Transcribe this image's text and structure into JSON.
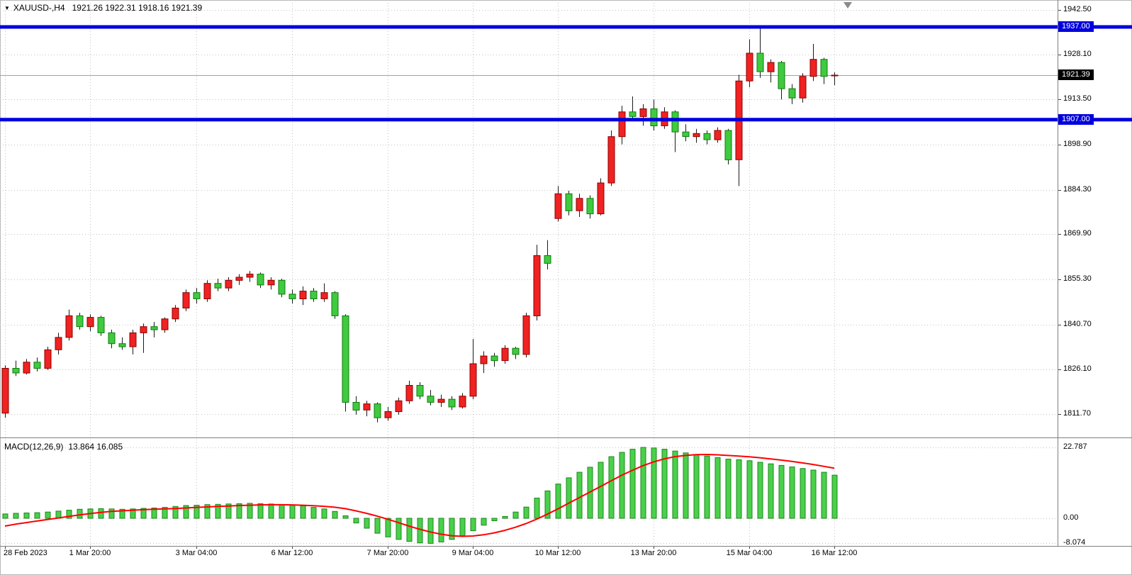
{
  "header": {
    "symbol_period": "XAUUSD-,H4",
    "ohlc_values": "1921.26 1922.31 1918.16 1921.39"
  },
  "chart_data": {
    "type": "candlestick",
    "symbol": "XAUUSD-",
    "timeframe": "H4",
    "price_axis": {
      "ticks": [
        {
          "label": "1942.50",
          "price": 1942.5
        },
        {
          "label": "1928.10",
          "price": 1928.1
        },
        {
          "label": "1913.50",
          "price": 1913.5
        },
        {
          "label": "1898.90",
          "price": 1898.9
        },
        {
          "label": "1884.30",
          "price": 1884.3
        },
        {
          "label": "1869.90",
          "price": 1869.9
        },
        {
          "label": "1855.30",
          "price": 1855.3
        },
        {
          "label": "1840.70",
          "price": 1840.7
        },
        {
          "label": "1826.10",
          "price": 1826.1
        },
        {
          "label": "1811.70",
          "price": 1811.7
        }
      ]
    },
    "time_axis": {
      "ticks": [
        {
          "label": "28 Feb 2023",
          "i": 0
        },
        {
          "label": "1 Mar 20:00",
          "i": 8
        },
        {
          "label": "3 Mar 04:00",
          "i": 18
        },
        {
          "label": "6 Mar 12:00",
          "i": 27
        },
        {
          "label": "7 Mar 20:00",
          "i": 36
        },
        {
          "label": "9 Mar 04:00",
          "i": 44
        },
        {
          "label": "10 Mar 12:00",
          "i": 52
        },
        {
          "label": "13 Mar 20:00",
          "i": 61
        },
        {
          "label": "15 Mar 04:00",
          "i": 70
        },
        {
          "label": "16 Mar 12:00",
          "i": 78
        }
      ]
    },
    "candles": [
      [
        1812.0,
        1827.5,
        1810.5,
        1826.5
      ],
      [
        1826.5,
        1829.0,
        1824.0,
        1825.0
      ],
      [
        1825.0,
        1829.5,
        1824.5,
        1828.5
      ],
      [
        1828.5,
        1830.0,
        1825.5,
        1826.5
      ],
      [
        1826.5,
        1833.5,
        1826.0,
        1832.5
      ],
      [
        1832.5,
        1838.0,
        1831.0,
        1836.5
      ],
      [
        1836.5,
        1845.5,
        1835.5,
        1843.5
      ],
      [
        1843.5,
        1844.5,
        1839.0,
        1840.0
      ],
      [
        1840.0,
        1844.0,
        1838.5,
        1843.0
      ],
      [
        1843.0,
        1843.5,
        1837.0,
        1838.0
      ],
      [
        1838.0,
        1839.0,
        1833.0,
        1834.5
      ],
      [
        1834.5,
        1836.5,
        1832.5,
        1833.5
      ],
      [
        1833.5,
        1839.0,
        1831.0,
        1838.0
      ],
      [
        1838.0,
        1841.0,
        1831.5,
        1840.0
      ],
      [
        1840.0,
        1841.5,
        1836.5,
        1839.0
      ],
      [
        1839.0,
        1843.0,
        1838.0,
        1842.5
      ],
      [
        1842.5,
        1847.0,
        1841.5,
        1846.0
      ],
      [
        1846.0,
        1852.0,
        1845.0,
        1851.0
      ],
      [
        1851.0,
        1852.5,
        1847.5,
        1849.0
      ],
      [
        1849.0,
        1855.0,
        1848.0,
        1854.0
      ],
      [
        1854.0,
        1855.5,
        1851.5,
        1852.5
      ],
      [
        1852.5,
        1856.0,
        1851.5,
        1855.0
      ],
      [
        1855.0,
        1857.0,
        1853.5,
        1856.0
      ],
      [
        1856.0,
        1858.0,
        1854.5,
        1857.0
      ],
      [
        1857.0,
        1857.5,
        1852.5,
        1853.5
      ],
      [
        1853.5,
        1856.0,
        1852.0,
        1855.0
      ],
      [
        1855.0,
        1855.5,
        1849.5,
        1850.5
      ],
      [
        1850.5,
        1852.0,
        1847.5,
        1849.0
      ],
      [
        1849.0,
        1853.0,
        1847.0,
        1851.5
      ],
      [
        1851.5,
        1852.5,
        1848.0,
        1849.0
      ],
      [
        1849.0,
        1854.0,
        1848.0,
        1851.0
      ],
      [
        1851.0,
        1851.5,
        1842.5,
        1843.5
      ],
      [
        1843.5,
        1844.0,
        1812.5,
        1815.5
      ],
      [
        1815.5,
        1817.5,
        1811.5,
        1813.0
      ],
      [
        1813.0,
        1816.0,
        1811.0,
        1815.0
      ],
      [
        1815.0,
        1815.5,
        1809.0,
        1810.5
      ],
      [
        1810.5,
        1814.0,
        1809.5,
        1812.5
      ],
      [
        1812.5,
        1817.0,
        1811.5,
        1816.0
      ],
      [
        1816.0,
        1822.5,
        1815.0,
        1821.0
      ],
      [
        1821.0,
        1822.0,
        1816.5,
        1817.5
      ],
      [
        1817.5,
        1819.5,
        1814.5,
        1815.5
      ],
      [
        1815.5,
        1818.0,
        1814.0,
        1816.5
      ],
      [
        1816.5,
        1817.5,
        1813.0,
        1814.0
      ],
      [
        1814.0,
        1818.5,
        1813.5,
        1817.5
      ],
      [
        1817.5,
        1836.0,
        1816.5,
        1828.0
      ],
      [
        1828.0,
        1832.0,
        1825.0,
        1830.5
      ],
      [
        1830.5,
        1831.5,
        1827.0,
        1829.0
      ],
      [
        1829.0,
        1834.0,
        1828.0,
        1833.0
      ],
      [
        1833.0,
        1833.5,
        1829.5,
        1831.0
      ],
      [
        1831.0,
        1844.5,
        1830.0,
        1843.5
      ],
      [
        1843.5,
        1866.5,
        1842.0,
        1863.0
      ],
      [
        1863.0,
        1868.0,
        1858.5,
        1860.5
      ],
      [
        1875.0,
        1885.5,
        1874.0,
        1883.0
      ],
      [
        1883.0,
        1884.0,
        1876.0,
        1877.5
      ],
      [
        1877.5,
        1883.0,
        1875.5,
        1881.5
      ],
      [
        1881.5,
        1882.5,
        1875.0,
        1876.5
      ],
      [
        1876.5,
        1888.0,
        1876.0,
        1886.5
      ],
      [
        1886.5,
        1903.5,
        1885.5,
        1901.5
      ],
      [
        1901.5,
        1911.5,
        1899.0,
        1909.5
      ],
      [
        1909.5,
        1914.5,
        1906.5,
        1908.0
      ],
      [
        1908.0,
        1912.0,
        1905.0,
        1910.5
      ],
      [
        1910.5,
        1913.5,
        1903.5,
        1905.0
      ],
      [
        1905.0,
        1911.0,
        1904.0,
        1909.5
      ],
      [
        1909.5,
        1910.0,
        1896.5,
        1903.0
      ],
      [
        1903.0,
        1905.5,
        1900.0,
        1901.5
      ],
      [
        1901.5,
        1904.0,
        1899.5,
        1902.5
      ],
      [
        1902.5,
        1903.5,
        1899.0,
        1900.5
      ],
      [
        1900.5,
        1904.5,
        1899.5,
        1903.5
      ],
      [
        1903.5,
        1904.0,
        1892.5,
        1894.0
      ],
      [
        1894.0,
        1921.5,
        1885.5,
        1919.5
      ],
      [
        1919.5,
        1933.0,
        1917.5,
        1928.5
      ],
      [
        1928.5,
        1937.5,
        1920.5,
        1922.5
      ],
      [
        1922.5,
        1926.5,
        1919.0,
        1925.5
      ],
      [
        1925.5,
        1926.0,
        1913.5,
        1917.0
      ],
      [
        1917.0,
        1918.5,
        1912.0,
        1914.0
      ],
      [
        1914.0,
        1922.0,
        1912.5,
        1921.0
      ],
      [
        1921.0,
        1931.5,
        1919.5,
        1926.5
      ],
      [
        1926.5,
        1927.0,
        1918.5,
        1921.0
      ],
      [
        1921.26,
        1922.31,
        1918.16,
        1921.39
      ]
    ],
    "hlines": [
      {
        "label": "1937.00",
        "price": 1937.0
      },
      {
        "label": "1907.00",
        "price": 1907.0
      }
    ],
    "current_price": {
      "label": "1921.39",
      "price": 1921.39
    },
    "macd": {
      "label": "MACD(12,26,9)",
      "values_text": "13.864 16.085",
      "axis_ticks": [
        {
          "label": "22.787",
          "value": 22.787
        },
        {
          "label": "0.00",
          "value": 0
        },
        {
          "label": "-8.074",
          "value": -8.074
        }
      ],
      "scale_max": 22.787,
      "scale_min": -8.074,
      "histogram": [
        1.4,
        1.6,
        1.7,
        1.8,
        2.0,
        2.3,
        2.6,
        2.9,
        3.0,
        3.1,
        3.0,
        2.9,
        3.0,
        3.2,
        3.3,
        3.5,
        3.8,
        4.1,
        4.2,
        4.4,
        4.5,
        4.6,
        4.7,
        4.8,
        4.7,
        4.6,
        4.4,
        4.2,
        4.0,
        3.5,
        3.0,
        2.2,
        0.8,
        -1.5,
        -3.2,
        -4.8,
        -6.0,
        -6.8,
        -7.4,
        -7.9,
        -8.074,
        -7.6,
        -6.8,
        -5.6,
        -4.0,
        -2.2,
        -0.8,
        0.6,
        2.0,
        3.6,
        6.5,
        8.8,
        11.0,
        13.0,
        14.8,
        16.4,
        18.0,
        19.8,
        21.2,
        22.2,
        22.787,
        22.6,
        22.2,
        21.6,
        21.0,
        20.5,
        20.0,
        19.5,
        19.0,
        18.8,
        18.5,
        18.0,
        17.5,
        17.0,
        16.5,
        16.0,
        15.5,
        14.8,
        13.864
      ],
      "signal": [
        -2.5,
        -1.9,
        -1.4,
        -0.9,
        -0.4,
        0.1,
        0.6,
        1.1,
        1.5,
        1.9,
        2.2,
        2.4,
        2.6,
        2.75,
        2.9,
        3.0,
        3.15,
        3.3,
        3.5,
        3.65,
        3.8,
        3.95,
        4.1,
        4.2,
        4.3,
        4.35,
        4.35,
        4.3,
        4.2,
        4.05,
        3.85,
        3.55,
        3.1,
        2.4,
        1.6,
        0.7,
        -0.3,
        -1.4,
        -2.5,
        -3.5,
        -4.4,
        -5.1,
        -5.6,
        -5.8,
        -5.7,
        -5.3,
        -4.7,
        -3.9,
        -2.9,
        -1.7,
        -0.3,
        1.3,
        3.0,
        4.8,
        6.6,
        8.4,
        10.2,
        12.0,
        13.8,
        15.4,
        16.9,
        18.1,
        19.1,
        19.8,
        20.2,
        20.45,
        20.5,
        20.4,
        20.2,
        20.0,
        19.75,
        19.45,
        19.1,
        18.7,
        18.3,
        17.8,
        17.3,
        16.7,
        16.085
      ]
    },
    "colors": {
      "up_body": "#f02222",
      "up_border": "#8e0000",
      "down_body": "#3fca3f",
      "down_border": "#0c7c0c",
      "wick": "#1a1a1a",
      "grid": "#c4c4c4",
      "hline": "#0000dd",
      "current_label_bg": "#000000",
      "bid_line": "#a0a0a0",
      "macd_bar": "#4ad04a",
      "macd_bar_border": "#1c871c",
      "macd_signal": "#ff0000",
      "separator": "#808080",
      "axis_text": "#000000",
      "shift_marker": "#8a8a8a"
    }
  }
}
